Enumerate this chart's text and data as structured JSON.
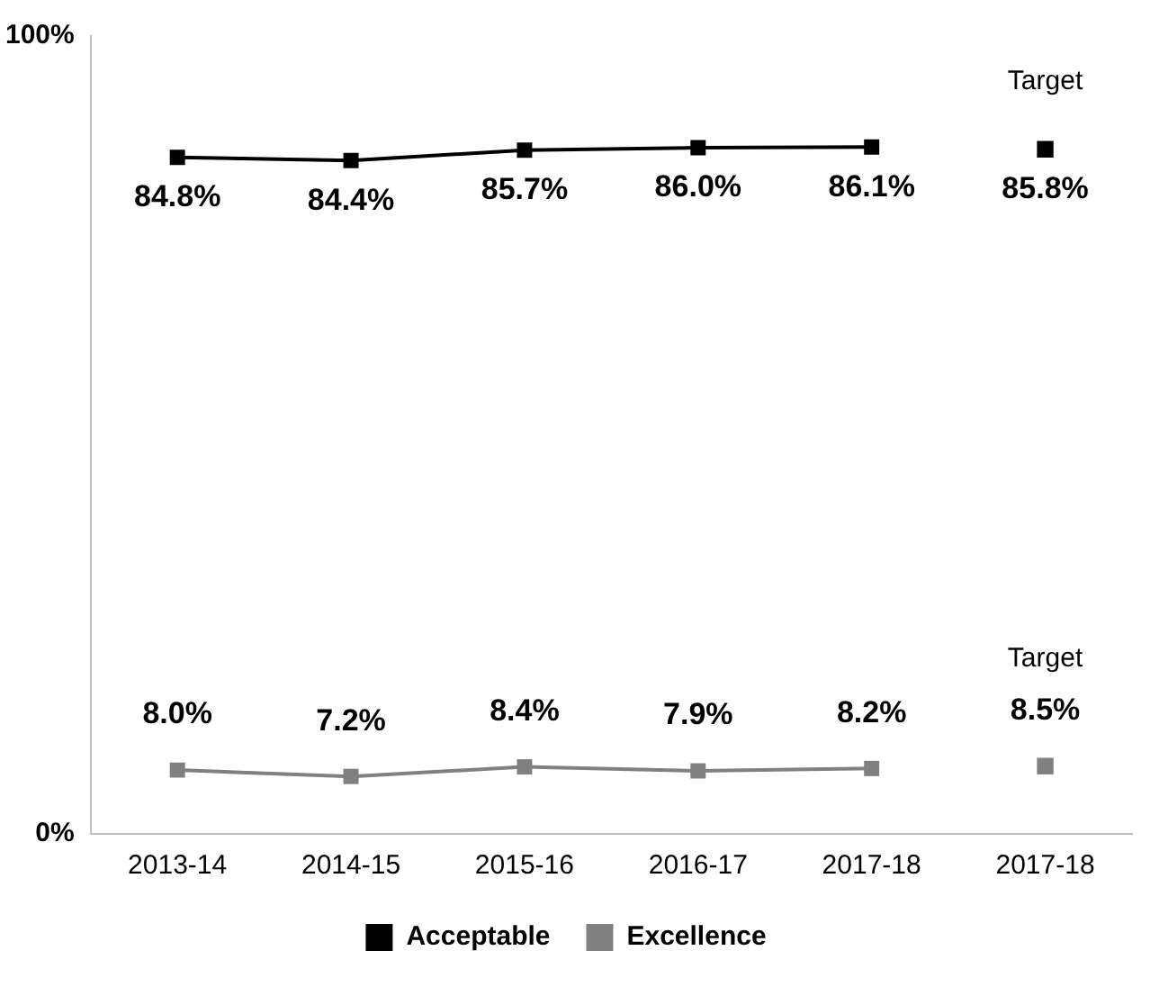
{
  "chart_data": {
    "type": "line",
    "categories": [
      "2013-14",
      "2014-15",
      "2015-16",
      "2016-17",
      "2017-18",
      "2017-18"
    ],
    "series": [
      {
        "name": "Acceptable",
        "color": "#000000",
        "values": [
          84.8,
          84.4,
          85.7,
          86.0,
          86.1,
          null
        ],
        "value_labels": [
          "84.8%",
          "84.4%",
          "85.7%",
          "86.0%",
          "86.1%",
          null
        ]
      },
      {
        "name": "Excellence",
        "color": "#808080",
        "values": [
          8.0,
          7.2,
          8.4,
          7.9,
          8.2,
          null
        ],
        "value_labels": [
          "8.0%",
          "7.2%",
          "8.4%",
          "7.9%",
          "8.2%",
          null
        ]
      },
      {
        "type": "scatter",
        "color": "#000000",
        "values": [
          null,
          null,
          null,
          null,
          null,
          85.8
        ],
        "value_labels": [
          null,
          null,
          null,
          null,
          null,
          "85.8%"
        ]
      },
      {
        "type": "scatter",
        "color": "#808080",
        "values": [
          null,
          null,
          null,
          null,
          null,
          8.5
        ],
        "value_labels": [
          null,
          null,
          null,
          null,
          null,
          "8.5%"
        ]
      }
    ],
    "annotations": [
      "Target",
      "Target"
    ],
    "ylim": [
      0,
      100
    ],
    "yticks": [
      {
        "value": 0,
        "label": "0%"
      },
      {
        "value": 100,
        "label": "100%"
      }
    ],
    "grid": false,
    "legend": "bottom",
    "marker": "square",
    "line_style": "solid"
  }
}
